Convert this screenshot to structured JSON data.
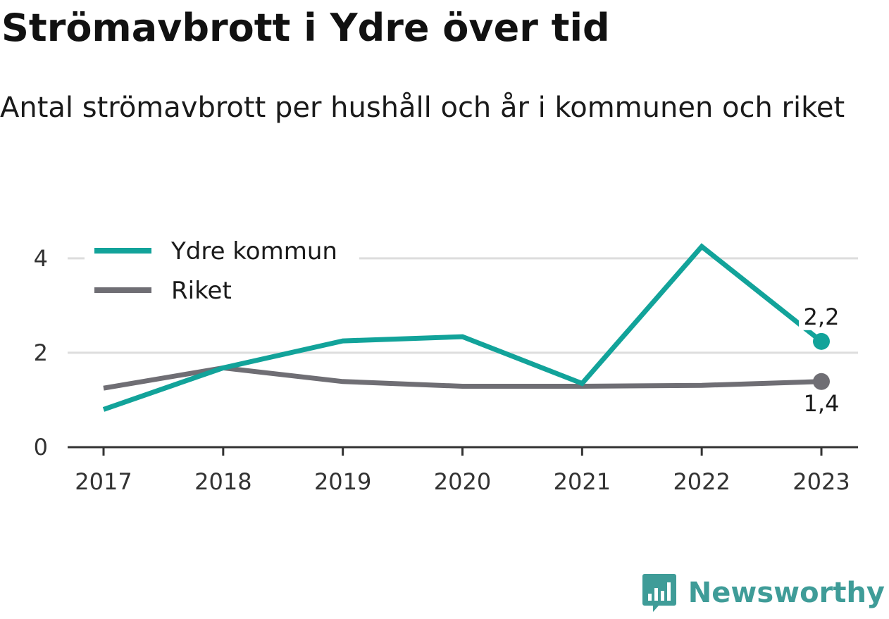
{
  "title": "Strömavbrott i Ydre över tid",
  "subtitle": "Antal strömavbrott per hushåll och år i kommunen och riket",
  "brand": {
    "name": "Newsworthy",
    "icon": "newsworthy-logo-icon",
    "color": "#3f9c98"
  },
  "chart_data": {
    "type": "line",
    "title": "Strömavbrott i Ydre över tid",
    "subtitle": "Antal strömavbrott per hushåll och år i kommunen och riket",
    "xlabel": "",
    "ylabel": "",
    "x": [
      "2017",
      "2018",
      "2019",
      "2020",
      "2021",
      "2022",
      "2023"
    ],
    "ylim": [
      0,
      4.4
    ],
    "yticks": [
      {
        "value": 0,
        "label": "0"
      },
      {
        "value": 2,
        "label": "2"
      },
      {
        "value": 4,
        "label": "4"
      }
    ],
    "grid": true,
    "legend_position": "top-left",
    "series": [
      {
        "name": "Ydre kommun",
        "color": "#12a39a",
        "values": [
          0.8,
          1.68,
          2.25,
          2.34,
          1.35,
          4.25,
          2.24
        ],
        "end_label": "2,2"
      },
      {
        "name": "Riket",
        "color": "#6f6e74",
        "values": [
          1.25,
          1.68,
          1.39,
          1.29,
          1.29,
          1.31,
          1.39
        ],
        "end_label": "1,4"
      }
    ]
  }
}
